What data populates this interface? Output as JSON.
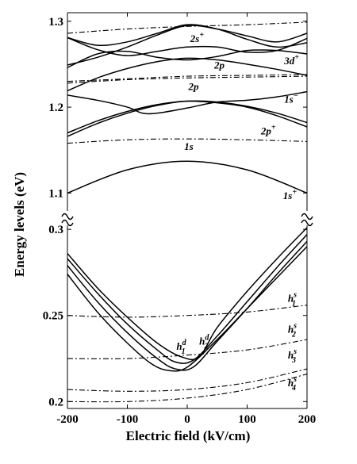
{
  "chart_data": {
    "type": "line",
    "xlabel": "Electric field  (kV/cm)",
    "ylabel": "Energy levels  (eV)",
    "xlim": [
      -200,
      200
    ],
    "xticks": [
      -200,
      -100,
      0,
      100,
      200
    ],
    "xtick_labels": [
      "-200",
      "-100",
      "0",
      "100",
      "200"
    ],
    "broken_axis": true,
    "grid": false,
    "legend": "none",
    "panels": [
      {
        "name": "upper",
        "ylim": [
          1.08,
          1.31
        ],
        "yticks": [
          1.1,
          1.2,
          1.3
        ],
        "ytick_labels": [
          "1.1",
          "1.2",
          "1.3"
        ],
        "series": [
          {
            "style": "solid",
            "x": [
              -200,
              -100,
              0,
              100,
              200
            ],
            "y": [
              1.1,
              1.127,
              1.137,
              1.127,
              1.1
            ]
          },
          {
            "style": "dashdot",
            "x": [
              -200,
              -100,
              0,
              100,
              200
            ],
            "y": [
              1.158,
              1.162,
              1.163,
              1.162,
              1.16
            ]
          },
          {
            "style": "solid",
            "x": [
              -200,
              -150,
              -100,
              -50,
              0,
              50,
              100,
              150,
              200
            ],
            "y": [
              1.17,
              1.184,
              1.195,
              1.203,
              1.207,
              1.205,
              1.2,
              1.19,
              1.177
            ]
          },
          {
            "style": "solid",
            "x": [
              -200,
              -150,
              -100,
              -50,
              0,
              50,
              100,
              150,
              200
            ],
            "y": [
              1.166,
              1.181,
              1.193,
              1.202,
              1.207,
              1.206,
              1.201,
              1.193,
              1.182
            ]
          },
          {
            "style": "solid",
            "x": [
              -200,
              -150,
              -100,
              -75,
              -50,
              0,
              50,
              100,
              150,
              200
            ],
            "y": [
              1.214,
              1.208,
              1.2,
              1.193,
              1.193,
              1.199,
              1.206,
              1.208,
              1.212,
              1.218
            ]
          },
          {
            "style": "dashdot",
            "x": [
              -200,
              -100,
              0,
              100,
              200
            ],
            "y": [
              1.228,
              1.232,
              1.234,
              1.235,
              1.236
            ]
          },
          {
            "style": "dashdot",
            "x": [
              -200,
              -100,
              0,
              100,
              200
            ],
            "y": [
              1.23,
              1.233,
              1.236,
              1.237,
              1.238
            ]
          },
          {
            "style": "solid",
            "x": [
              -200,
              -150,
              -100,
              -50,
              0,
              50,
              100,
              150,
              200
            ],
            "y": [
              1.219,
              1.234,
              1.245,
              1.253,
              1.257,
              1.255,
              1.25,
              1.244,
              1.237
            ]
          },
          {
            "style": "solid",
            "x": [
              -200,
              -150,
              -100,
              -50,
              0,
              50,
              100,
              150,
              200
            ],
            "y": [
              1.246,
              1.262,
              1.265,
              1.258,
              1.255,
              1.259,
              1.266,
              1.266,
              1.262
            ]
          },
          {
            "style": "solid",
            "x": [
              -200,
              -150,
              -100,
              -50,
              0,
              50,
              100,
              150,
              200
            ],
            "y": [
              1.281,
              1.267,
              1.26,
              1.265,
              1.27,
              1.27,
              1.264,
              1.266,
              1.28
            ]
          },
          {
            "style": "solid",
            "x": [
              -200,
              -150,
              -100,
              -50,
              0,
              50,
              100,
              150,
              200
            ],
            "y": [
              1.249,
              1.258,
              1.27,
              1.284,
              1.295,
              1.291,
              1.283,
              1.276,
              1.286
            ]
          },
          {
            "style": "solid",
            "x": [
              -200,
              -150,
              -100,
              -50,
              0,
              50,
              100,
              150,
              200
            ],
            "y": [
              1.281,
              1.272,
              1.276,
              1.286,
              1.296,
              1.291,
              1.279,
              1.27,
              1.275
            ]
          },
          {
            "style": "dashdot",
            "x": [
              -200,
              -100,
              0,
              100,
              200
            ],
            "y": [
              1.286,
              1.291,
              1.294,
              1.296,
              1.299
            ]
          }
        ]
      },
      {
        "name": "lower",
        "ylim": [
          0.196,
          0.301
        ],
        "yticks": [
          0.2,
          0.25,
          0.3
        ],
        "ytick_labels": [
          "0.2",
          "0.25",
          "0.3"
        ],
        "series": [
          {
            "style": "solid",
            "x": [
              -200,
              -150,
              -100,
              -60,
              -30,
              0,
              50,
              100,
              150,
              200
            ],
            "y": [
              0.274,
              0.252,
              0.234,
              0.222,
              0.218,
              0.22,
              0.236,
              0.254,
              0.272,
              0.29
            ]
          },
          {
            "style": "solid",
            "x": [
              -200,
              -150,
              -100,
              -50,
              -20,
              10,
              50,
              100,
              150,
              200
            ],
            "y": [
              0.279,
              0.258,
              0.24,
              0.225,
              0.219,
              0.22,
              0.235,
              0.254,
              0.274,
              0.293
            ]
          },
          {
            "style": "solid",
            "x": [
              -200,
              -150,
              -100,
              -50,
              -20,
              10,
              50,
              100,
              150,
              200
            ],
            "y": [
              0.283,
              0.263,
              0.245,
              0.23,
              0.223,
              0.224,
              0.238,
              0.258,
              0.278,
              0.297
            ]
          },
          {
            "style": "solid",
            "x": [
              -200,
              -150,
              -100,
              -50,
              -10,
              20,
              50,
              100,
              150,
              200
            ],
            "y": [
              0.286,
              0.266,
              0.249,
              0.234,
              0.226,
              0.226,
              0.243,
              0.264,
              0.283,
              0.301
            ]
          },
          {
            "style": "dashdot",
            "x": [
              -200,
              -100,
              0,
              100,
              200
            ],
            "y": [
              0.25,
              0.249,
              0.25,
              0.252,
              0.256
            ]
          },
          {
            "style": "dashdot",
            "x": [
              -200,
              -100,
              0,
              100,
              200
            ],
            "y": [
              0.225,
              0.225,
              0.227,
              0.23,
              0.236
            ]
          },
          {
            "style": "dashdot",
            "x": [
              -200,
              -100,
              0,
              100,
              200
            ],
            "y": [
              0.207,
              0.206,
              0.207,
              0.211,
              0.219
            ]
          },
          {
            "style": "dashdot",
            "x": [
              -200,
              -100,
              0,
              100,
              200
            ],
            "y": [
              0.2,
              0.2,
              0.202,
              0.207,
              0.216
            ]
          }
        ]
      }
    ],
    "annotations": [
      {
        "id": "2s+",
        "base": "2s",
        "sup": "+",
        "sub": "",
        "panel": "upper",
        "x": 5,
        "y": 1.276
      },
      {
        "id": "3d+",
        "base": "3d",
        "sup": "+",
        "sub": "",
        "panel": "upper",
        "x": 162,
        "y": 1.25
      },
      {
        "id": "2p-",
        "base": "2p",
        "sup": "−",
        "sub": "",
        "panel": "upper",
        "x": 45,
        "y": 1.245
      },
      {
        "id": "2p",
        "base": "2p",
        "sup": "",
        "sub": "",
        "panel": "upper",
        "x": 2,
        "y": 1.22
      },
      {
        "id": "1s-",
        "base": "1s",
        "sup": "−",
        "sub": "",
        "panel": "upper",
        "x": 162,
        "y": 1.205
      },
      {
        "id": "2p+",
        "base": "2p",
        "sup": "+",
        "sub": "",
        "panel": "upper",
        "x": 123,
        "y": 1.168
      },
      {
        "id": "1s",
        "base": "1s",
        "sup": "",
        "sub": "",
        "panel": "upper",
        "x": -5,
        "y": 1.15
      },
      {
        "id": "1s+",
        "base": "1s",
        "sup": "+",
        "sub": "",
        "panel": "upper",
        "x": 160,
        "y": 1.093
      },
      {
        "id": "h1d",
        "base": "h",
        "sup": "d",
        "sub": "1",
        "panel": "lower",
        "x": -18,
        "y": 0.23
      },
      {
        "id": "h2d",
        "base": "h",
        "sup": "d",
        "sub": "2",
        "panel": "lower",
        "x": 20,
        "y": 0.233
      },
      {
        "id": "h1s",
        "base": "h",
        "sup": "s",
        "sub": "1",
        "panel": "lower",
        "x": 168,
        "y": 0.258
      },
      {
        "id": "h2s",
        "base": "h",
        "sup": "s",
        "sub": "2",
        "panel": "lower",
        "x": 168,
        "y": 0.24
      },
      {
        "id": "h3s",
        "base": "h",
        "sup": "s",
        "sub": "3",
        "panel": "lower",
        "x": 168,
        "y": 0.225
      },
      {
        "id": "h4s",
        "base": "h",
        "sup": "s",
        "sub": "4",
        "panel": "lower",
        "x": 168,
        "y": 0.209
      }
    ]
  }
}
